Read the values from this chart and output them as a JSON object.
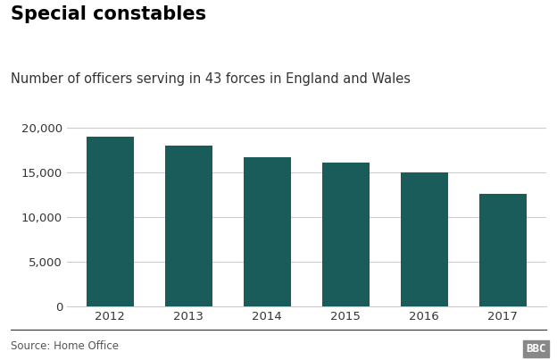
{
  "title": "Special constables",
  "subtitle": "Number of officers serving in 43 forces in England and Wales",
  "source": "Source: Home Office",
  "categories": [
    "2012",
    "2013",
    "2014",
    "2015",
    "2016",
    "2017"
  ],
  "values": [
    19000,
    18000,
    16700,
    16100,
    15000,
    12600
  ],
  "bar_color": "#1a5c5a",
  "background_color": "#ffffff",
  "ylim": [
    0,
    21000
  ],
  "yticks": [
    0,
    5000,
    10000,
    15000,
    20000
  ],
  "ytick_labels": [
    "0",
    "5,000",
    "10,000",
    "15,000",
    "20,000"
  ],
  "title_fontsize": 15,
  "subtitle_fontsize": 10.5,
  "tick_fontsize": 9.5,
  "source_fontsize": 8.5,
  "bar_width": 0.6,
  "grid_color": "#cccccc",
  "bbc_logo_text": "BBC",
  "bbc_bg_color": "#888888"
}
